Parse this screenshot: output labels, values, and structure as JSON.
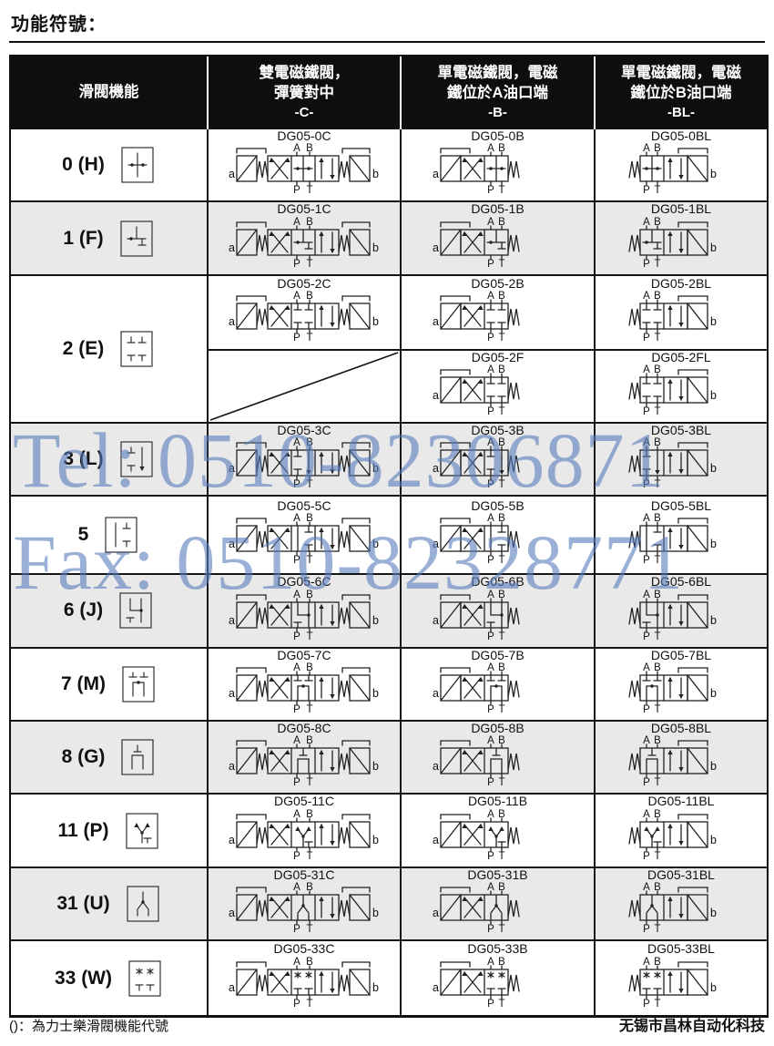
{
  "page": {
    "title": "功能符號：",
    "footnote": "()：為力士樂滑閥機能代號",
    "company": "无锡市昌林自动化科技"
  },
  "watermark": {
    "line1": "Tel: 0510-82306871",
    "line2": "Fax: 0510-82328771",
    "color": "#587bbc"
  },
  "table": {
    "headers": [
      {
        "line1": "滑閥機能",
        "line2": "",
        "code": ""
      },
      {
        "line1": "雙電磁鐵閥，",
        "line2": "彈簧對中",
        "code": "-C-"
      },
      {
        "line1": "單電磁鐵閥，電磁",
        "line2": "鐵位於A油口端",
        "code": "-B-"
      },
      {
        "line1": "單電磁鐵閥，電磁",
        "line2": "鐵位於B油口端",
        "code": "-BL-"
      }
    ],
    "port_labels": {
      "top_left": "A",
      "top_right": "B",
      "bottom_left": "P",
      "bottom_right": "T",
      "side_left": "a",
      "side_right": "b"
    },
    "rows": [
      {
        "spool": "0 (H)",
        "models": {
          "c": "DG05-0C",
          "b": "DG05-0B",
          "bl": "DG05-0BL"
        }
      },
      {
        "spool": "1 (F)",
        "models": {
          "c": "DG05-1C",
          "b": "DG05-1B",
          "bl": "DG05-1BL"
        }
      },
      {
        "spool": "2 (E)",
        "models": {
          "c": "DG05-2C",
          "b": "DG05-2B",
          "bl": "DG05-2BL",
          "b2": "DG05-2F",
          "bl2": "DG05-2FL"
        }
      },
      {
        "spool": "3 (L)",
        "models": {
          "c": "DG05-3C",
          "b": "DG05-3B",
          "bl": "DG05-3BL"
        }
      },
      {
        "spool": "5",
        "models": {
          "c": "DG05-5C",
          "b": "DG05-5B",
          "bl": "DG05-5BL"
        }
      },
      {
        "spool": "6 (J)",
        "models": {
          "c": "DG05-6C",
          "b": "DG05-6B",
          "bl": "DG05-6BL"
        }
      },
      {
        "spool": "7 (M)",
        "models": {
          "c": "DG05-7C",
          "b": "DG05-7B",
          "bl": "DG05-7BL"
        }
      },
      {
        "spool": "8 (G)",
        "models": {
          "c": "DG05-8C",
          "b": "DG05-8B",
          "bl": "DG05-8BL"
        }
      },
      {
        "spool": "11 (P)",
        "models": {
          "c": "DG05-11C",
          "b": "DG05-11B",
          "bl": "DG05-11BL"
        }
      },
      {
        "spool": "31 (U)",
        "models": {
          "c": "DG05-31C",
          "b": "DG05-31B",
          "bl": "DG05-31BL"
        }
      },
      {
        "spool": "33 (W)",
        "models": {
          "c": "DG05-33C",
          "b": "DG05-33B",
          "bl": "DG05-33BL"
        }
      }
    ]
  }
}
